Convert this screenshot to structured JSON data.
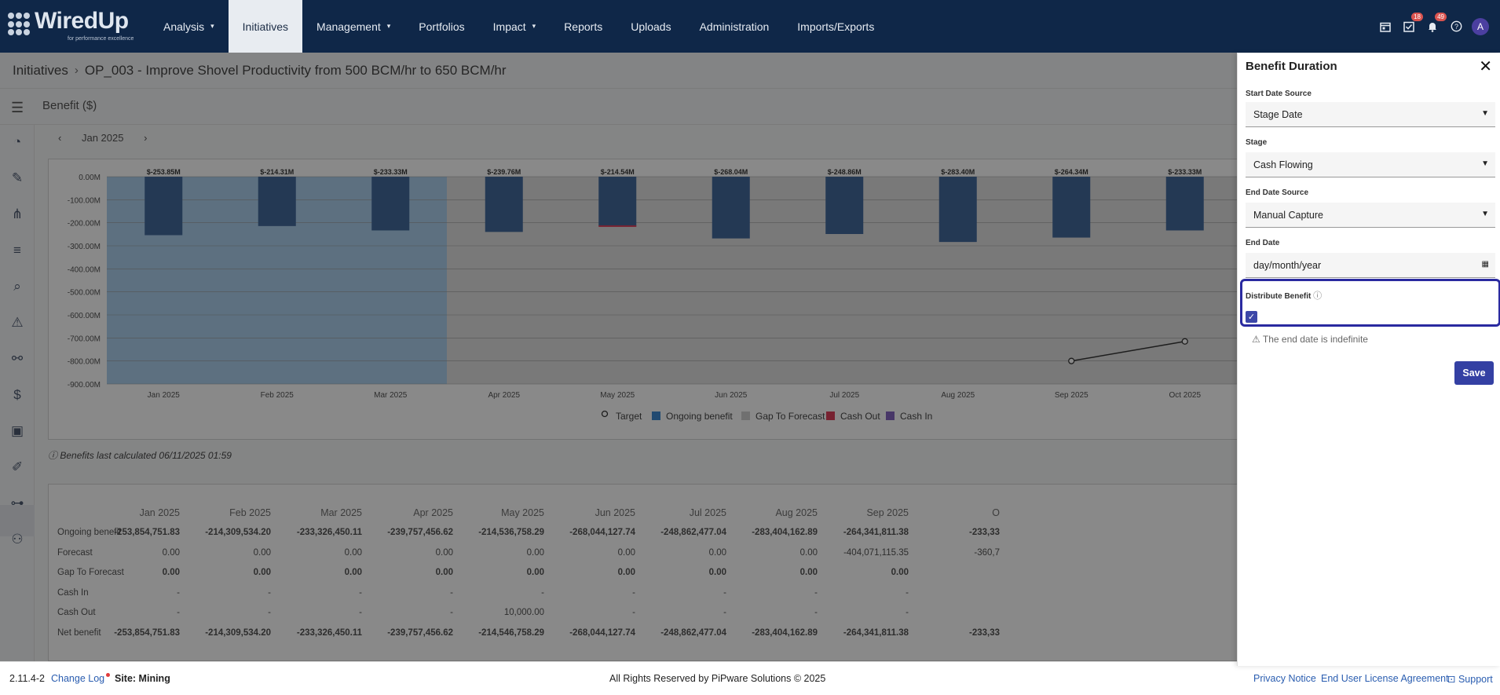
{
  "app": {
    "logo": "WiredUp",
    "tagline": "for performance excellence"
  },
  "nav": {
    "items": [
      {
        "label": "Analysis",
        "caret": "▾"
      },
      {
        "label": "Initiatives",
        "caret": ""
      },
      {
        "label": "Management",
        "caret": "▾"
      },
      {
        "label": "Portfolios",
        "caret": ""
      },
      {
        "label": "Impact",
        "caret": "▾"
      },
      {
        "label": "Reports",
        "caret": ""
      },
      {
        "label": "Uploads",
        "caret": ""
      },
      {
        "label": "Administration",
        "caret": ""
      },
      {
        "label": "Imports/Exports",
        "caret": ""
      }
    ],
    "active": "Initiatives"
  },
  "topicons": {
    "tasks_badge": "18",
    "notifications_badge": "49",
    "avatar": "A"
  },
  "breadcrumb": {
    "root": "Initiatives",
    "current": "OP_003 - Improve Shovel Productivity from 500 BCM/hr to 650 BCM/hr"
  },
  "subheader": {
    "title": "Benefit ($)"
  },
  "monthnav": {
    "prev": "‹",
    "label": "Jan 2025",
    "next": "›"
  },
  "chart_data": {
    "type": "bar",
    "categories": [
      "Jan 2025",
      "Feb 2025",
      "Mar 2025",
      "Apr 2025",
      "May 2025",
      "Jun 2025",
      "Jul 2025",
      "Aug 2025",
      "Sep 2025",
      "Oct 2025"
    ],
    "series": [
      {
        "name": "Ongoing benefit",
        "values": [
          -253.85,
          -214.31,
          -233.33,
          -239.76,
          -214.54,
          -268.04,
          -248.86,
          -283.4,
          -264.34,
          -233.33
        ]
      },
      {
        "name": "Target",
        "values": [
          null,
          null,
          null,
          null,
          null,
          null,
          null,
          null,
          -800,
          -715
        ]
      }
    ],
    "data_labels": [
      "$-253.85M",
      "$-214.31M",
      "$-233.33M",
      "$-239.76M",
      "$-214.54M",
      "$-268.04M",
      "$-248.86M",
      "$-283.40M",
      "$-264.34M",
      "$-233.33M"
    ],
    "yticks": [
      "0.00M",
      "-100.00M",
      "-200.00M",
      "-300.00M",
      "-400.00M",
      "-500.00M",
      "-600.00M",
      "-700.00M",
      "-800.00M",
      "-900.00M"
    ],
    "ylim": [
      -900,
      0
    ],
    "ylabel": "",
    "xlabel": "",
    "legend": [
      "Target",
      "Ongoing benefit",
      "Gap To Forecast",
      "Cash Out",
      "Cash In"
    ],
    "legend_colors": [
      "#ffffff",
      "#1a73c9",
      "#c8c8c8",
      "#d81b3c",
      "#6f4bb5"
    ],
    "legend_position": "bottom"
  },
  "calc_note": "Benefits last calculated 06/11/2025 01:59",
  "table": {
    "headers": [
      "Jan 2025",
      "Feb 2025",
      "Mar 2025",
      "Apr 2025",
      "May 2025",
      "Jun 2025",
      "Jul 2025",
      "Aug 2025",
      "Sep 2025",
      "O"
    ],
    "rows": [
      {
        "label": "Ongoing benefit",
        "values": [
          "-253,854,751.83",
          "-214,309,534.20",
          "-233,326,450.11",
          "-239,757,456.62",
          "-214,536,758.29",
          "-268,044,127.74",
          "-248,862,477.04",
          "-283,404,162.89",
          "-264,341,811.38",
          "-233,33"
        ]
      },
      {
        "label": "Forecast",
        "values": [
          "0.00",
          "0.00",
          "0.00",
          "0.00",
          "0.00",
          "0.00",
          "0.00",
          "0.00",
          "-404,071,115.35",
          "-360,7"
        ]
      },
      {
        "label": "Gap To Forecast",
        "values": [
          "0.00",
          "0.00",
          "0.00",
          "0.00",
          "0.00",
          "0.00",
          "0.00",
          "0.00",
          "0.00",
          ""
        ]
      },
      {
        "label": "Cash In",
        "values": [
          "-",
          "-",
          "-",
          "-",
          "-",
          "-",
          "-",
          "-",
          "-",
          ""
        ]
      },
      {
        "label": "Cash Out",
        "values": [
          "-",
          "-",
          "-",
          "-",
          "10,000.00",
          "-",
          "-",
          "-",
          "-",
          ""
        ]
      },
      {
        "label": "Net benefit",
        "values": [
          "-253,854,751.83",
          "-214,309,534.20",
          "-233,326,450.11",
          "-239,757,456.62",
          "-214,546,758.29",
          "-268,044,127.74",
          "-248,862,477.04",
          "-283,404,162.89",
          "-264,341,811.38",
          "-233,33"
        ]
      }
    ]
  },
  "footer": {
    "version": "2.11.4-2",
    "changelog": "Change Log",
    "site": "Site: Mining",
    "rights": "All Rights Reserved by PiPware Solutions © 2025",
    "privacy": "Privacy Notice",
    "eula": "End User License Agreement",
    "support": "Support"
  },
  "panel": {
    "title": "Benefit Duration",
    "close": "✕",
    "start_source_label": "Start Date Source",
    "start_source_value": "Stage Date",
    "stage_label": "Stage",
    "stage_value": "Cash Flowing",
    "end_source_label": "End Date Source",
    "end_source_value": "Manual Capture",
    "end_date_label": "End Date",
    "end_date_placeholder": "day/month/year",
    "distribute_label": "Distribute Benefit",
    "distribute_checked": true,
    "warning": "The end date is indefinite",
    "save": "Save"
  }
}
